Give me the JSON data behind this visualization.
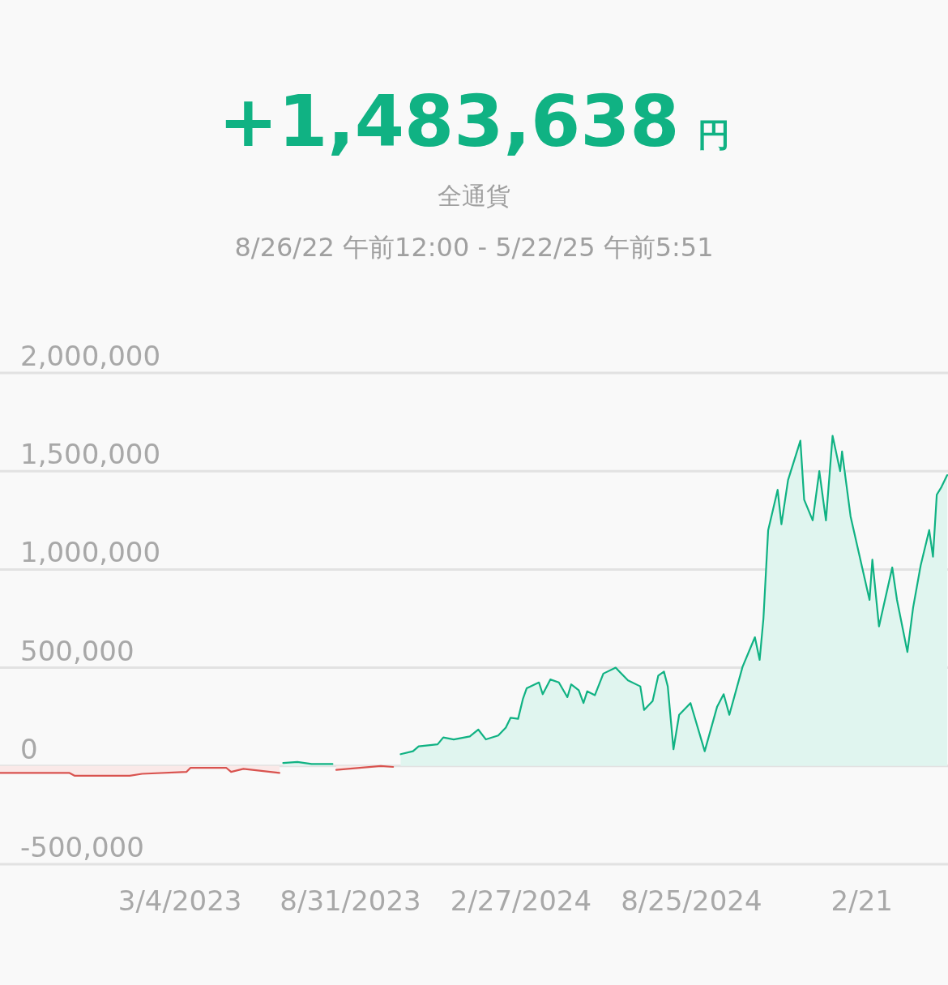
{
  "chart_data": {
    "type": "area",
    "title": "+1,483,638 円",
    "subtitle": "全通貨",
    "annotations": [
      "8/26/22 午前12:00 - 5/22/25 午前5:51"
    ],
    "xlim": [
      "2022-08-26",
      "2025-05-22"
    ],
    "ylim": [
      -500000,
      2000000
    ],
    "grid": "y",
    "xticks": [
      {
        "value": "2023-03-04",
        "label": "3/4/2023"
      },
      {
        "value": "2023-08-31",
        "label": "8/31/2023"
      },
      {
        "value": "2024-02-27",
        "label": "2/27/2024"
      },
      {
        "value": "2024-08-25",
        "label": "8/25/2024"
      },
      {
        "value": "2025-02-21",
        "label": "2/21"
      }
    ],
    "yticks": [
      {
        "value": -500000,
        "label": "-500,000"
      },
      0,
      {
        "value": 500000,
        "label": "500,000"
      },
      {
        "value": 1000000,
        "label": "1,000,000"
      },
      {
        "value": 1500000,
        "label": "1,500,000"
      },
      {
        "value": 2000000,
        "label": "2,000,000"
      }
    ],
    "series": [
      {
        "color": "#d9534f",
        "x": [
          "2022-08-26",
          "2022-09-29",
          "2022-11-07",
          "2022-11-13",
          "2023-01-10",
          "2023-01-23",
          "2023-03-11",
          "2023-03-15",
          "2023-04-22",
          "2023-04-27",
          "2023-05-10",
          "2023-06-17"
        ],
        "values": [
          -35000,
          -35000,
          -35000,
          -50000,
          -50000,
          -40000,
          -30000,
          -10000,
          -10000,
          -30000,
          -15000,
          -35000
        ]
      },
      {
        "color": "#10b283",
        "x": [
          "2023-06-21",
          "2023-07-06",
          "2023-07-21",
          "2023-08-12"
        ],
        "values": [
          15000,
          20000,
          10000,
          10000
        ]
      },
      {
        "color": "#d9534f",
        "x": [
          "2023-08-16",
          "2023-10-02",
          "2023-10-15"
        ],
        "values": [
          -20000,
          0,
          -5000
        ]
      },
      {
        "color": "#10b283",
        "x": [
          "2023-10-23",
          "2023-11-05",
          "2023-11-11",
          "2023-12-01",
          "2023-12-07",
          "2023-12-18",
          "2024-01-04",
          "2024-01-13",
          "2024-01-21",
          "2024-02-03",
          "2024-02-11",
          "2024-02-16",
          "2024-02-24",
          "2024-02-29",
          "2024-03-04",
          "2024-03-17",
          "2024-03-21",
          "2024-03-29",
          "2024-04-07",
          "2024-04-16",
          "2024-04-20",
          "2024-04-28",
          "2024-05-03",
          "2024-05-07",
          "2024-05-15",
          "2024-05-24",
          "2024-06-06",
          "2024-06-19",
          "2024-07-02",
          "2024-07-06",
          "2024-07-15",
          "2024-07-21",
          "2024-07-27",
          "2024-07-31",
          "2024-08-06",
          "2024-08-12",
          "2024-08-24",
          "2024-09-08",
          "2024-09-21",
          "2024-09-28",
          "2024-10-04",
          "2024-10-18",
          "2024-10-31",
          "2024-11-05",
          "2024-11-09",
          "2024-11-14",
          "2024-11-24",
          "2024-11-28",
          "2024-12-05",
          "2024-12-18",
          "2024-12-22",
          "2024-12-31",
          "2025-01-07",
          "2025-01-14",
          "2025-01-21",
          "2025-01-29",
          "2025-01-31",
          "2025-02-09",
          "2025-03-01",
          "2025-03-04",
          "2025-03-11",
          "2025-03-25",
          "2025-03-30",
          "2025-04-10",
          "2025-04-16",
          "2025-04-24",
          "2025-05-03",
          "2025-05-07",
          "2025-05-11",
          "2025-05-16",
          "2025-05-22"
        ],
        "values": [
          60000,
          75000,
          100000,
          110000,
          145000,
          135000,
          150000,
          185000,
          135000,
          155000,
          195000,
          245000,
          240000,
          340000,
          395000,
          425000,
          365000,
          440000,
          425000,
          350000,
          415000,
          385000,
          320000,
          380000,
          360000,
          470000,
          500000,
          435000,
          405000,
          285000,
          330000,
          460000,
          480000,
          405000,
          85000,
          260000,
          320000,
          75000,
          300000,
          365000,
          260000,
          505000,
          655000,
          540000,
          750000,
          1200000,
          1405000,
          1230000,
          1455000,
          1655000,
          1355000,
          1250000,
          1500000,
          1250000,
          1680000,
          1500000,
          1600000,
          1270000,
          845000,
          1050000,
          710000,
          1010000,
          845000,
          580000,
          805000,
          1020000,
          1200000,
          1065000,
          1380000,
          1420000,
          1480000
        ]
      }
    ]
  }
}
